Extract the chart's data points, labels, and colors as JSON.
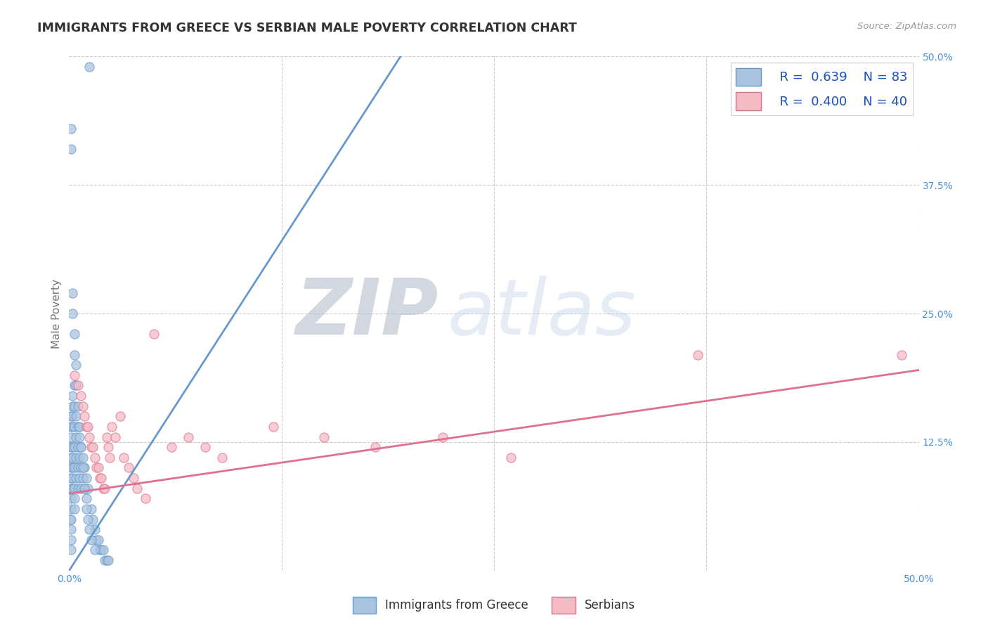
{
  "title": "IMMIGRANTS FROM GREECE VS SERBIAN MALE POVERTY CORRELATION CHART",
  "source": "Source: ZipAtlas.com",
  "ylabel": "Male Poverty",
  "xlim": [
    0.0,
    0.5
  ],
  "ylim": [
    0.0,
    0.5
  ],
  "background_color": "#ffffff",
  "grid_color": "#cccccc",
  "greece_edge_color": "#6699cc",
  "greece_face_color": "#aac4e0",
  "serbian_edge_color": "#e07090",
  "serbian_face_color": "#f5bbc5",
  "legend_R1": "R =  0.639",
  "legend_N1": "N = 83",
  "legend_R2": "R =  0.400",
  "legend_N2": "N = 40",
  "legend_label1": "Immigrants from Greece",
  "legend_label2": "Serbians",
  "axis_label_color": "#4a90d9",
  "title_color": "#333333",
  "source_color": "#999999",
  "ylabel_color": "#777777",
  "greece_line_x": [
    0.0,
    0.195
  ],
  "greece_line_y": [
    0.0,
    0.5
  ],
  "serbia_line_x": [
    0.0,
    0.5
  ],
  "serbia_line_y": [
    0.075,
    0.195
  ],
  "greece_x": [
    0.0005,
    0.001,
    0.001,
    0.001,
    0.001,
    0.001,
    0.001,
    0.001,
    0.001,
    0.001,
    0.001,
    0.001,
    0.001,
    0.001,
    0.002,
    0.002,
    0.002,
    0.002,
    0.002,
    0.002,
    0.002,
    0.002,
    0.002,
    0.003,
    0.003,
    0.003,
    0.003,
    0.003,
    0.003,
    0.003,
    0.003,
    0.004,
    0.004,
    0.004,
    0.004,
    0.005,
    0.005,
    0.005,
    0.005,
    0.006,
    0.006,
    0.006,
    0.007,
    0.007,
    0.007,
    0.008,
    0.008,
    0.009,
    0.009,
    0.01,
    0.01,
    0.011,
    0.012,
    0.013,
    0.014,
    0.015,
    0.016,
    0.017,
    0.018,
    0.019,
    0.02,
    0.021,
    0.022,
    0.023,
    0.001,
    0.001,
    0.001,
    0.002,
    0.002,
    0.003,
    0.003,
    0.004,
    0.004,
    0.005,
    0.006,
    0.007,
    0.008,
    0.009,
    0.01,
    0.011,
    0.012,
    0.013,
    0.015
  ],
  "greece_y": [
    0.05,
    0.15,
    0.14,
    0.13,
    0.12,
    0.11,
    0.1,
    0.09,
    0.08,
    0.07,
    0.06,
    0.05,
    0.04,
    0.03,
    0.17,
    0.16,
    0.15,
    0.14,
    0.12,
    0.11,
    0.1,
    0.09,
    0.08,
    0.18,
    0.16,
    0.14,
    0.12,
    0.1,
    0.08,
    0.07,
    0.06,
    0.15,
    0.13,
    0.11,
    0.09,
    0.14,
    0.12,
    0.1,
    0.08,
    0.13,
    0.11,
    0.09,
    0.12,
    0.1,
    0.08,
    0.11,
    0.09,
    0.1,
    0.08,
    0.09,
    0.07,
    0.08,
    0.49,
    0.06,
    0.05,
    0.04,
    0.03,
    0.03,
    0.02,
    0.02,
    0.02,
    0.01,
    0.01,
    0.01,
    0.43,
    0.41,
    0.02,
    0.27,
    0.25,
    0.23,
    0.21,
    0.2,
    0.18,
    0.16,
    0.14,
    0.12,
    0.1,
    0.08,
    0.06,
    0.05,
    0.04,
    0.03,
    0.02
  ],
  "serbia_x": [
    0.003,
    0.005,
    0.007,
    0.008,
    0.009,
    0.01,
    0.011,
    0.012,
    0.013,
    0.014,
    0.015,
    0.016,
    0.017,
    0.018,
    0.019,
    0.02,
    0.021,
    0.022,
    0.023,
    0.024,
    0.025,
    0.027,
    0.03,
    0.032,
    0.035,
    0.038,
    0.04,
    0.045,
    0.05,
    0.06,
    0.07,
    0.08,
    0.09,
    0.12,
    0.15,
    0.18,
    0.22,
    0.26,
    0.37,
    0.49
  ],
  "serbia_y": [
    0.19,
    0.18,
    0.17,
    0.16,
    0.15,
    0.14,
    0.14,
    0.13,
    0.12,
    0.12,
    0.11,
    0.1,
    0.1,
    0.09,
    0.09,
    0.08,
    0.08,
    0.13,
    0.12,
    0.11,
    0.14,
    0.13,
    0.15,
    0.11,
    0.1,
    0.09,
    0.08,
    0.07,
    0.23,
    0.12,
    0.13,
    0.12,
    0.11,
    0.14,
    0.13,
    0.12,
    0.13,
    0.11,
    0.21,
    0.21
  ]
}
